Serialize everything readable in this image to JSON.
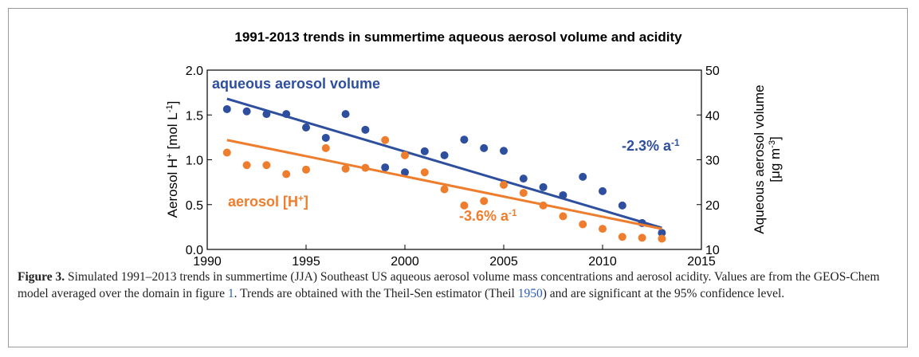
{
  "chart_data": {
    "type": "scatter",
    "title": "1991-2013 trends in summertime aqueous aerosol volume and acidity",
    "ylabel": {
      "text": "Aerosol H",
      "sup1": "+",
      "mid": " [mol L",
      "sup2": "-1",
      "tail": "]"
    },
    "y2label": {
      "line1": "Aqueous aerosol volume",
      "line2": "[μg m",
      "sup": "-3",
      "tail": "]"
    },
    "xlim": [
      1990,
      2015
    ],
    "xticks": [
      1990,
      1995,
      2000,
      2005,
      2010,
      2015
    ],
    "ylim": [
      0,
      2
    ],
    "yticks": [
      {
        "value": 0,
        "label": "0.0"
      },
      0.5,
      {
        "value": 1,
        "label": "1.0"
      },
      1.5,
      {
        "value": 2,
        "label": "2.0"
      }
    ],
    "y2lim": [
      10,
      50
    ],
    "y2ticks": [
      10,
      20,
      30,
      40,
      50
    ],
    "x": [
      1991,
      1992,
      1993,
      1994,
      1995,
      1996,
      1997,
      1998,
      1999,
      2000,
      2001,
      2002,
      2003,
      2004,
      2005,
      2006,
      2007,
      2008,
      2009,
      2010,
      2011,
      2012,
      2013
    ],
    "series": [
      {
        "name": "aqueous aerosol volume",
        "color": "#2e4f9e",
        "axis": "y2",
        "values": [
          41.3,
          40.8,
          40.2,
          40.2,
          37.2,
          34.9,
          40.2,
          36.7,
          28.3,
          27.2,
          31.9,
          31.0,
          34.5,
          32.6,
          32.0,
          25.8,
          23.9,
          22.1,
          26.2,
          23.0,
          19.8,
          15.9,
          13.7
        ],
        "trend_x": [
          1991,
          2013
        ],
        "trend": [
          43.6,
          14.8
        ],
        "annotation": {
          "text": "-2.3% a",
          "sup": "-1"
        }
      },
      {
        "name": "aerosol [H",
        "name_sup": "+",
        "name_tail": "]",
        "color": "#ee7d2d",
        "axis": "y",
        "values": [
          1.08,
          0.94,
          0.94,
          0.84,
          0.89,
          1.13,
          0.9,
          0.91,
          1.22,
          1.05,
          0.86,
          0.67,
          0.49,
          0.54,
          0.72,
          0.63,
          0.49,
          0.37,
          0.28,
          0.23,
          0.14,
          0.13,
          0.12
        ],
        "trend_x": [
          1991,
          2013
        ],
        "trend": [
          1.22,
          0.23
        ],
        "annotation": {
          "text": "-3.6% a",
          "sup": "-1"
        }
      }
    ]
  },
  "caption": {
    "label": "Figure 3.",
    "text1": " Simulated 1991–2013 trends in summertime (JJA) Southeast US aqueous aerosol volume mass concentrations and aerosol acidity. Values are from the GEOS-Chem model averaged over the domain in figure ",
    "link1": "1",
    "text2": ". Trends are obtained with the Theil-Sen estimator (Theil ",
    "link2": "1950",
    "text3": ") and are significant at the 95% confidence level."
  }
}
